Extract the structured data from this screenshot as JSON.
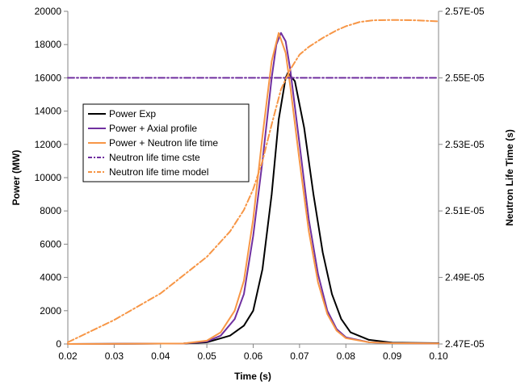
{
  "chart_data": {
    "type": "line",
    "title": "",
    "xlabel": "Time (s)",
    "ylabel": "Power (MW)",
    "y2label": "Neutron Life Time (s)",
    "xlim": [
      0.02,
      0.1
    ],
    "ylim": [
      0,
      20000
    ],
    "y2lim": [
      2.47e-05,
      2.57e-05
    ],
    "x_ticks": [
      "0.02",
      "0.03",
      "0.04",
      "0.05",
      "0.06",
      "0.07",
      "0.08",
      "0.09",
      "0.10"
    ],
    "y_ticks": [
      "0",
      "2000",
      "4000",
      "6000",
      "8000",
      "10000",
      "12000",
      "14000",
      "16000",
      "18000",
      "20000"
    ],
    "y2_ticks": [
      "2.47E-05",
      "2.49E-05",
      "2.51E-05",
      "2.53E-05",
      "2.55E-05",
      "2.57E-05"
    ],
    "grid": false,
    "legend_position": "left-center",
    "series": [
      {
        "name": "Power Exp",
        "axis": "left",
        "color": "#000000",
        "dash": "solid",
        "x": [
          0.02,
          0.045,
          0.05,
          0.055,
          0.058,
          0.06,
          0.062,
          0.064,
          0.0655,
          0.067,
          0.0675,
          0.069,
          0.071,
          0.073,
          0.075,
          0.077,
          0.079,
          0.081,
          0.085,
          0.09,
          0.1
        ],
        "y": [
          0,
          30,
          100,
          500,
          1100,
          2000,
          4500,
          9000,
          13500,
          16000,
          16300,
          15800,
          13000,
          9000,
          5500,
          3000,
          1500,
          700,
          250,
          80,
          50
        ]
      },
      {
        "name": "Power + Axial profile",
        "axis": "left",
        "color": "#7030a0",
        "dash": "solid",
        "x": [
          0.02,
          0.045,
          0.05,
          0.053,
          0.056,
          0.058,
          0.06,
          0.062,
          0.064,
          0.065,
          0.066,
          0.067,
          0.068,
          0.07,
          0.072,
          0.074,
          0.076,
          0.078,
          0.08,
          0.085,
          0.09,
          0.1
        ],
        "y": [
          0,
          30,
          150,
          500,
          1500,
          3000,
          6500,
          11000,
          16000,
          18000,
          18700,
          18200,
          16500,
          12000,
          7500,
          4200,
          2000,
          900,
          400,
          100,
          50,
          30
        ]
      },
      {
        "name": "Power + Neutron life time",
        "axis": "left",
        "color": "#f79646",
        "dash": "solid",
        "x": [
          0.02,
          0.045,
          0.05,
          0.053,
          0.056,
          0.058,
          0.06,
          0.062,
          0.064,
          0.0655,
          0.067,
          0.068,
          0.07,
          0.072,
          0.074,
          0.076,
          0.078,
          0.08,
          0.085,
          0.09,
          0.1
        ],
        "y": [
          0,
          30,
          200,
          700,
          2000,
          3800,
          7500,
          12500,
          17000,
          18700,
          17500,
          15500,
          11000,
          6800,
          3700,
          1800,
          800,
          350,
          100,
          50,
          30
        ]
      },
      {
        "name": "Neutron life time cste",
        "axis": "right",
        "color": "#7030a0",
        "dash": "dashdot",
        "x": [
          0.02,
          0.1
        ],
        "y": [
          2.55e-05,
          2.55e-05
        ]
      },
      {
        "name": "Neutron life time model",
        "axis": "right",
        "color": "#f79646",
        "dash": "dashdot",
        "x": [
          0.02,
          0.03,
          0.04,
          0.05,
          0.055,
          0.058,
          0.06,
          0.062,
          0.064,
          0.066,
          0.068,
          0.07,
          0.072,
          0.075,
          0.078,
          0.08,
          0.083,
          0.086,
          0.09,
          0.095,
          0.1
        ],
        "y": [
          2.4705e-05,
          2.4772e-05,
          2.4852e-05,
          2.4962e-05,
          2.5038e-05,
          2.5103e-05,
          2.5165e-05,
          2.525e-05,
          2.536e-05,
          2.5465e-05,
          2.5525e-05,
          2.557e-05,
          2.5593e-05,
          2.562e-05,
          2.5643e-05,
          2.5655e-05,
          2.5668e-05,
          2.5673e-05,
          2.5674e-05,
          2.5673e-05,
          2.567e-05
        ]
      }
    ]
  }
}
